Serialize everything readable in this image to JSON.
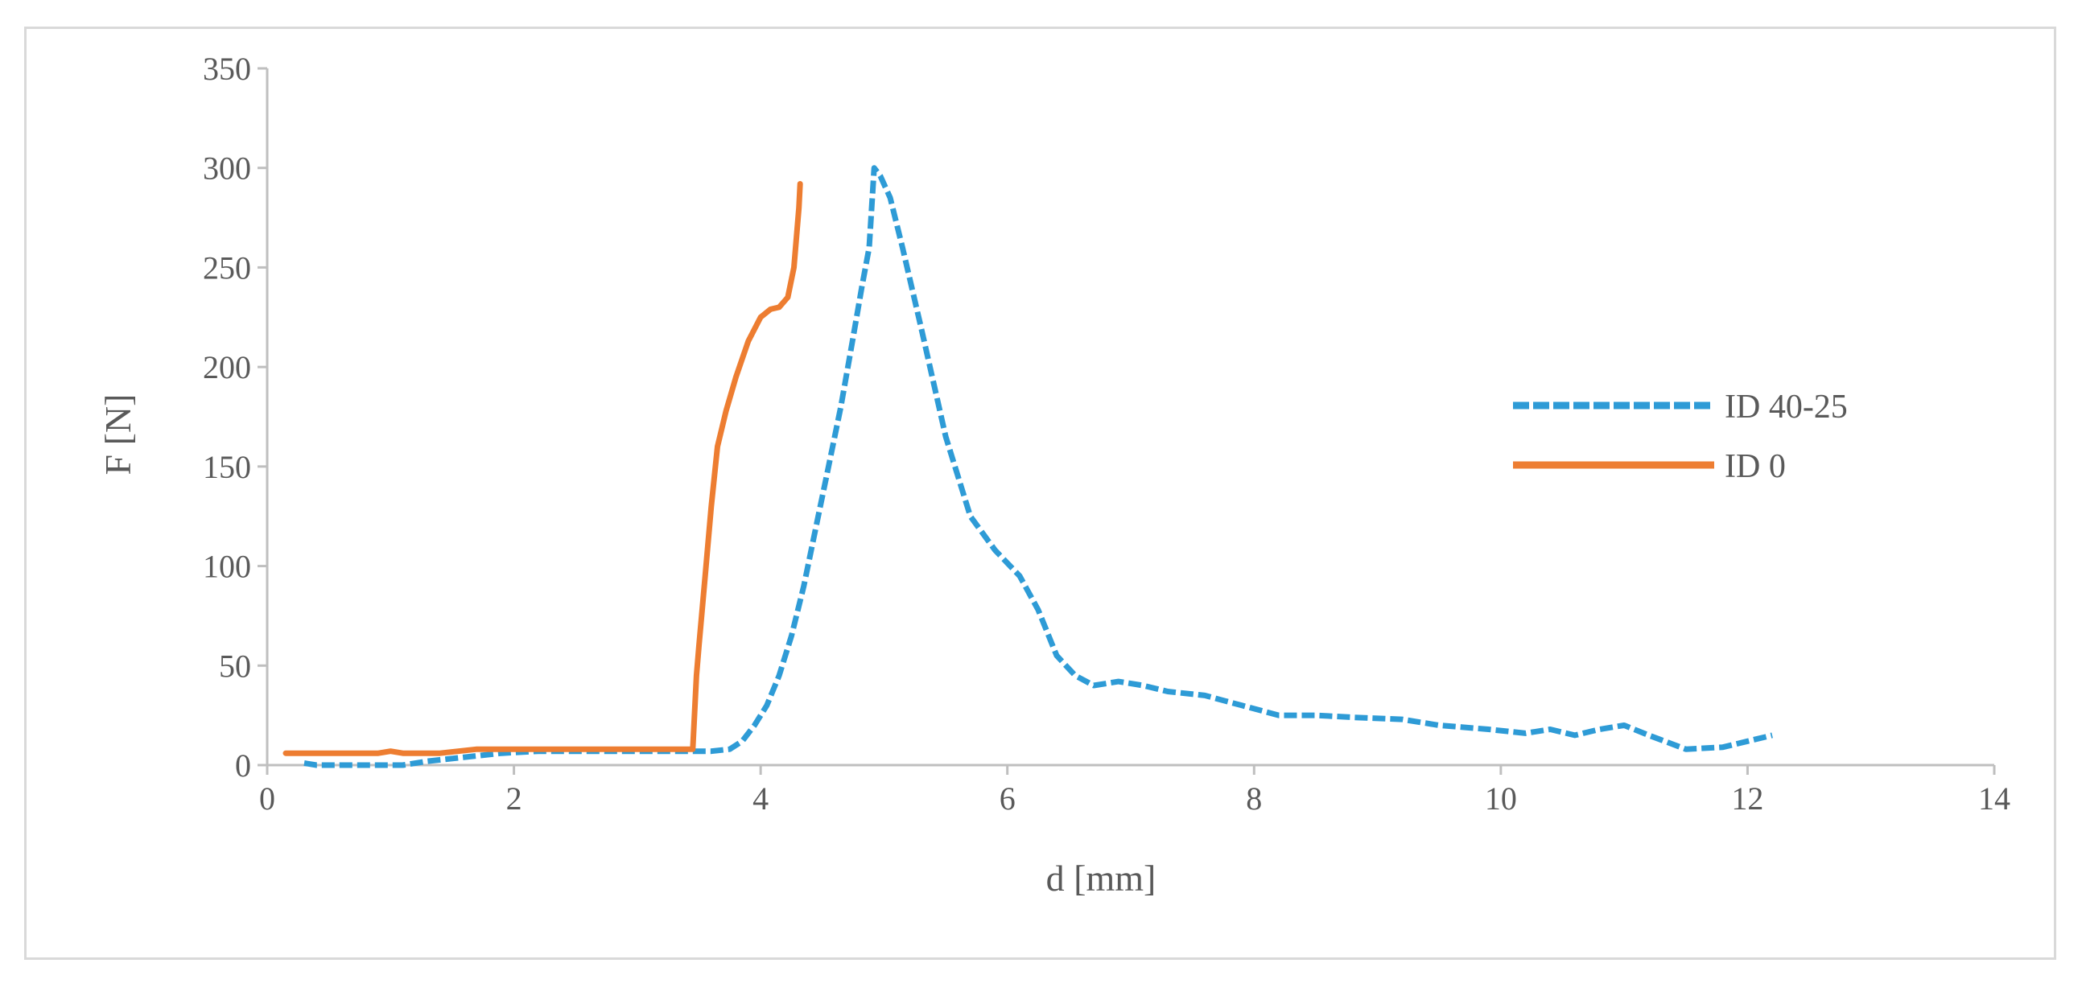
{
  "chart_data": {
    "type": "line",
    "title": "",
    "xlabel": "d [mm]",
    "ylabel": "F [N]",
    "xlim": [
      0,
      14
    ],
    "ylim": [
      0,
      350
    ],
    "xticks": [
      0,
      2,
      4,
      6,
      8,
      10,
      12,
      14
    ],
    "yticks": [
      0,
      50,
      100,
      150,
      200,
      250,
      300,
      350
    ],
    "grid": false,
    "legend_position": "right",
    "series": [
      {
        "name": "ID 40-25",
        "color": "#2e9bd6",
        "style": "dashed",
        "x": [
          0.3,
          0.4,
          1.1,
          1.3,
          1.6,
          1.9,
          2.2,
          2.6,
          3.0,
          3.4,
          3.6,
          3.75,
          3.85,
          3.95,
          4.05,
          4.15,
          4.25,
          4.35,
          4.45,
          4.55,
          4.65,
          4.75,
          4.82,
          4.88,
          4.92,
          4.97,
          5.05,
          5.15,
          5.3,
          5.5,
          5.7,
          5.9,
          6.1,
          6.25,
          6.4,
          6.55,
          6.7,
          6.9,
          7.1,
          7.3,
          7.6,
          7.9,
          8.2,
          8.5,
          8.8,
          9.2,
          9.5,
          9.9,
          10.2,
          10.4,
          10.6,
          10.8,
          11.0,
          11.2,
          11.5,
          11.8,
          12.0,
          12.2
        ],
        "y": [
          1,
          0,
          0,
          2,
          4,
          6,
          7,
          7,
          7,
          7,
          7,
          8,
          12,
          20,
          30,
          45,
          65,
          90,
          120,
          150,
          180,
          215,
          240,
          260,
          300,
          296,
          285,
          260,
          220,
          165,
          125,
          108,
          95,
          78,
          55,
          45,
          40,
          42,
          40,
          37,
          35,
          30,
          25,
          25,
          24,
          23,
          20,
          18,
          16,
          18,
          15,
          18,
          20,
          15,
          8,
          9,
          12,
          15
        ]
      },
      {
        "name": "ID 0",
        "color": "#ed7d31",
        "style": "solid",
        "x": [
          0.15,
          0.9,
          1.0,
          1.1,
          1.4,
          1.7,
          2.2,
          2.8,
          3.2,
          3.45,
          3.48,
          3.5,
          3.55,
          3.6,
          3.65,
          3.72,
          3.8,
          3.9,
          4.0,
          4.08,
          4.15,
          4.22,
          4.27,
          4.29,
          4.31,
          4.32
        ],
        "y": [
          6,
          6,
          7,
          6,
          6,
          8,
          8,
          8,
          8,
          8,
          45,
          60,
          95,
          130,
          160,
          178,
          195,
          213,
          225,
          229,
          230,
          235,
          250,
          265,
          280,
          292
        ]
      }
    ]
  }
}
